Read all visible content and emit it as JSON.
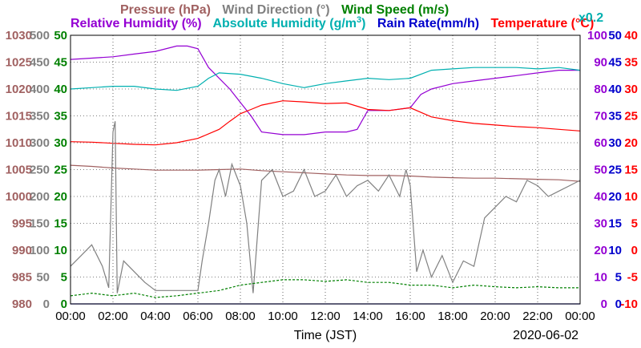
{
  "header": {
    "line1": [
      {
        "text": "Pressure (hPa)",
        "color": "#a06060"
      },
      {
        "text": "Wind Direction (°)",
        "color": "#808080"
      },
      {
        "text": "Wind Speed (m/s)",
        "color": "#008000"
      }
    ],
    "line2": [
      {
        "text": "Relative Humidity (%)",
        "color": "#9400d3"
      },
      {
        "text": "Absolute Humidity (g/m",
        "color": "#00b0b0"
      },
      {
        "text": "3",
        "color": "#00b0b0"
      },
      {
        "text": ")",
        "color": "#00b0b0"
      },
      {
        "text": "Rain Rate(mm/h)",
        "color": "#0000cc"
      },
      {
        "text": "Temperature (°C)",
        "color": "#ff0000"
      },
      {
        "text": "x0.2",
        "color": "#00b0b0"
      }
    ]
  },
  "footer": {
    "xlabel": "Time (JST)",
    "date": "2020-06-02"
  },
  "chart_data": {
    "type": "line",
    "x_categories": [
      "00:00",
      "02:00",
      "04:00",
      "06:00",
      "08:00",
      "10:00",
      "12:00",
      "14:00",
      "16:00",
      "18:00",
      "20:00",
      "22:00",
      "00:00"
    ],
    "grid": true,
    "axes": {
      "pressure": {
        "ticks": [
          "1030",
          "1025",
          "1020",
          "1015",
          "1010",
          "1005",
          "1000",
          "995",
          "990",
          "985",
          "980"
        ],
        "range": [
          980,
          1030
        ],
        "color": "#a06060"
      },
      "wind_direction": {
        "ticks": [
          "500",
          "450",
          "400",
          "350",
          "300",
          "250",
          "200",
          "150",
          "100",
          "50",
          "0"
        ],
        "range": [
          0,
          500
        ],
        "color": "#808080"
      },
      "wind_speed": {
        "ticks": [
          "50",
          "45",
          "40",
          "35",
          "30",
          "25",
          "20",
          "15",
          "10",
          "5",
          "0"
        ],
        "range": [
          0,
          50
        ],
        "color": "#008000"
      },
      "humidity": {
        "ticks": [
          "100",
          "90",
          "80",
          "70",
          "60",
          "50",
          "40",
          "30",
          "20",
          "10",
          "0"
        ],
        "range": [
          0,
          100
        ],
        "color": "#9400d3"
      },
      "rain_rate": {
        "ticks": [
          "50",
          "45",
          "40",
          "35",
          "30",
          "25",
          "20",
          "15",
          "10",
          "5",
          "0"
        ],
        "range": [
          0,
          50
        ],
        "color": "#0000cc"
      },
      "temperature": {
        "ticks": [
          "40",
          "35",
          "30",
          "25",
          "20",
          "15",
          "10",
          "5",
          "0",
          "-5",
          "-10"
        ],
        "range": [
          -10,
          40
        ],
        "color": "#ff0000"
      }
    },
    "series": [
      {
        "name": "Pressure (hPa)",
        "axis": "pressure",
        "color": "#a06060",
        "x": [
          0,
          1,
          2,
          3,
          4,
          5,
          6,
          7,
          8,
          9,
          10,
          11,
          12,
          13,
          14,
          15,
          16,
          17,
          18,
          19,
          20,
          21,
          22,
          23,
          24
        ],
        "y": [
          1005.8,
          1005.6,
          1005.3,
          1005.1,
          1004.9,
          1004.9,
          1004.9,
          1005.0,
          1005.1,
          1004.8,
          1004.6,
          1004.4,
          1004.2,
          1004.0,
          1003.9,
          1003.9,
          1003.8,
          1003.6,
          1003.5,
          1003.4,
          1003.4,
          1003.3,
          1003.2,
          1003.1,
          1002.8
        ]
      },
      {
        "name": "Relative Humidity (%)",
        "axis": "humidity",
        "color": "#9400d3",
        "x": [
          0,
          1,
          2,
          3,
          4,
          5,
          5.5,
          6,
          6.5,
          7,
          7.5,
          8,
          8.5,
          9,
          10,
          11,
          12,
          13,
          13.5,
          14,
          15,
          16,
          16.5,
          17,
          18,
          19,
          20,
          21,
          22,
          23,
          24
        ],
        "y": [
          91,
          91.5,
          92,
          93,
          94,
          96,
          96,
          95,
          88,
          84,
          80,
          75,
          70,
          64,
          63,
          63,
          64,
          64,
          65,
          72,
          72,
          73,
          78,
          80,
          82,
          83,
          84,
          85,
          86,
          87,
          87
        ]
      },
      {
        "name": "Absolute Humidity (g/m3) x0.2",
        "axis": "humidity",
        "color": "#00b0b0",
        "x": [
          0,
          1,
          2,
          3,
          4,
          5,
          6,
          6.5,
          7,
          8,
          9,
          10,
          11,
          12,
          13,
          14,
          15,
          16,
          17,
          18,
          19,
          20,
          21,
          22,
          23,
          24
        ],
        "y": [
          80,
          80.5,
          81,
          81,
          80,
          79.5,
          81,
          84,
          86,
          85.5,
          84,
          82,
          80.5,
          82,
          83,
          84,
          83.5,
          84,
          87,
          87.5,
          88,
          88,
          88,
          87.5,
          88,
          87
        ]
      },
      {
        "name": "Temperature (°C)",
        "axis": "temperature",
        "color": "#ff0000",
        "x": [
          0,
          1,
          2,
          3,
          4,
          5,
          6,
          7,
          7.5,
          8,
          8.5,
          9,
          10,
          11,
          12,
          13,
          14,
          15,
          16,
          17,
          18,
          19,
          20,
          21,
          22,
          23,
          24
        ],
        "y": [
          20.2,
          20.1,
          19.9,
          19.7,
          19.6,
          20,
          20.8,
          22.5,
          24,
          25.4,
          26.2,
          27,
          27.8,
          27.6,
          27.3,
          27.4,
          26.2,
          26,
          26.5,
          24.8,
          24.1,
          23.6,
          23.3,
          23,
          22.8,
          22.5,
          22.2
        ]
      },
      {
        "name": "Wind Direction (°)",
        "axis": "wind_direction",
        "color": "#808080",
        "x": [
          0,
          0.5,
          1,
          1.5,
          1.8,
          2,
          2.1,
          2.2,
          2.5,
          3,
          3.5,
          4,
          4.5,
          5,
          5.5,
          6,
          6.2,
          6.5,
          6.8,
          7,
          7.3,
          7.6,
          8,
          8.3,
          8.6,
          9,
          9.5,
          10,
          10.5,
          11,
          11.5,
          12,
          12.5,
          13,
          13.5,
          14,
          14.5,
          15,
          15.5,
          15.8,
          16,
          16.3,
          16.6,
          17,
          17.5,
          18,
          18.5,
          19,
          19.5,
          20,
          20.5,
          21,
          21.5,
          22,
          22.5,
          23,
          23.5,
          24
        ],
        "y": [
          70,
          90,
          110,
          70,
          30,
          320,
          340,
          20,
          80,
          60,
          40,
          25,
          25,
          25,
          25,
          25,
          80,
          150,
          230,
          250,
          200,
          260,
          220,
          150,
          20,
          230,
          250,
          200,
          210,
          250,
          200,
          210,
          240,
          200,
          220,
          230,
          210,
          240,
          200,
          250,
          220,
          60,
          100,
          50,
          90,
          40,
          80,
          70,
          160,
          180,
          200,
          190,
          230,
          220,
          200,
          210,
          220,
          230
        ]
      },
      {
        "name": "Wind Speed (m/s)",
        "axis": "wind_speed",
        "color": "#008000",
        "x": [
          0,
          1,
          2,
          3,
          4,
          5,
          6,
          7,
          8,
          9,
          10,
          11,
          12,
          13,
          14,
          15,
          16,
          17,
          18,
          19,
          20,
          21,
          22,
          23,
          24
        ],
        "y": [
          1.5,
          2,
          1.5,
          2,
          1.2,
          1.5,
          2,
          2.5,
          3.5,
          4,
          4.5,
          4.5,
          4.2,
          4.5,
          4,
          4,
          3.5,
          3.5,
          3,
          3.5,
          3.2,
          3,
          3.2,
          3,
          3
        ]
      },
      {
        "name": "Rain Rate(mm/h)",
        "axis": "rain_rate",
        "color": "#0000cc",
        "x": [
          0,
          24
        ],
        "y": [
          0,
          0
        ]
      }
    ]
  }
}
